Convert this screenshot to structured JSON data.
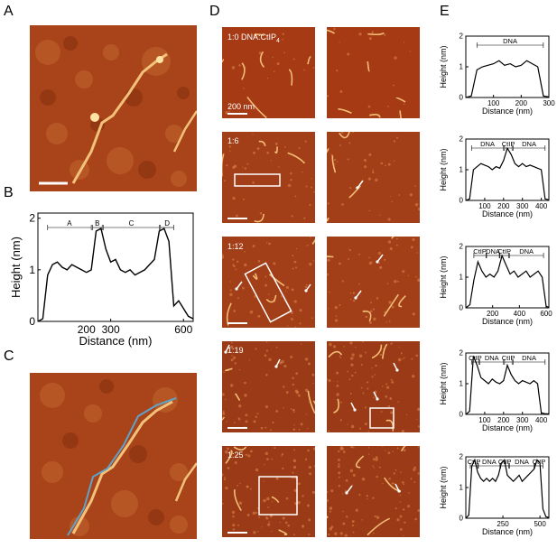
{
  "panels": {
    "A": {
      "letter": "A"
    },
    "B": {
      "letter": "B",
      "xlabel": "Distance (nm)",
      "ylabel": "Height (nm)",
      "xticks": [
        "0",
        "300",
        "600"
      ],
      "xticks_minor": [
        "200"
      ],
      "yticks": [
        "0",
        "1",
        "2"
      ],
      "segments": [
        "A",
        "B",
        "C",
        "D"
      ]
    },
    "C": {
      "letter": "C"
    },
    "D": {
      "letter": "D",
      "rows": [
        {
          "ratio": "1:0 DNA:CtIP",
          "sub": "4",
          "scale": "200 nm"
        },
        {
          "ratio": "1:6"
        },
        {
          "ratio": "1:12"
        },
        {
          "ratio": "1:19"
        },
        {
          "ratio": "1:25"
        }
      ]
    },
    "E": {
      "letter": "E",
      "xlabel": "Distance (nm)",
      "ylabel": "Height (nm)"
    }
  },
  "chart_data": [
    {
      "type": "line",
      "panel": "B",
      "xlabel": "Distance (nm)",
      "ylabel": "Height (nm)",
      "xlim": [
        0,
        640
      ],
      "ylim": [
        0,
        2.1
      ],
      "annotations": [
        "A",
        "B",
        "C",
        "D"
      ],
      "x": [
        0,
        20,
        40,
        60,
        80,
        100,
        120,
        140,
        160,
        180,
        200,
        220,
        240,
        260,
        280,
        300,
        320,
        340,
        360,
        380,
        400,
        420,
        440,
        460,
        480,
        500,
        520,
        540,
        560,
        580,
        600,
        620,
        640
      ],
      "y": [
        0,
        0.05,
        0.9,
        1.1,
        1.15,
        1.05,
        1.0,
        1.1,
        1.05,
        1.0,
        0.95,
        1.0,
        1.75,
        1.8,
        1.4,
        1.15,
        1.2,
        1.0,
        0.95,
        1.0,
        0.9,
        0.95,
        1.0,
        1.1,
        1.2,
        1.75,
        1.8,
        1.55,
        0.3,
        0.4,
        0.25,
        0.1,
        0.05
      ]
    },
    {
      "type": "line",
      "panel": "E1",
      "xlabel": "Distance (nm)",
      "ylabel": "Height (nm)",
      "xlim": [
        0,
        300
      ],
      "ylim": [
        0,
        2
      ],
      "xticks": [
        "100",
        "200",
        "300"
      ],
      "yticks": [
        "0",
        "1",
        "2"
      ],
      "annotations": [
        "DNA"
      ],
      "x": [
        0,
        20,
        40,
        60,
        80,
        100,
        120,
        140,
        160,
        180,
        200,
        220,
        240,
        260,
        280,
        300
      ],
      "y": [
        0,
        0.05,
        0.9,
        1.0,
        1.05,
        1.1,
        1.2,
        1.05,
        1.1,
        1.0,
        1.05,
        1.2,
        1.1,
        1.0,
        0.05,
        0.02
      ]
    },
    {
      "type": "line",
      "panel": "E2",
      "xlabel": "Distance (nm)",
      "ylabel": "Height (nm)",
      "xlim": [
        0,
        440
      ],
      "ylim": [
        0,
        2
      ],
      "xticks": [
        "100",
        "200",
        "300",
        "400"
      ],
      "yticks": [
        "0",
        "1",
        "2"
      ],
      "annotations": [
        "DNA",
        "CtIP",
        "DNA"
      ],
      "x": [
        0,
        20,
        40,
        60,
        80,
        100,
        120,
        140,
        160,
        180,
        200,
        220,
        240,
        260,
        280,
        300,
        320,
        340,
        360,
        380,
        400,
        420,
        440
      ],
      "y": [
        0,
        0.05,
        1.0,
        1.1,
        1.2,
        1.15,
        1.1,
        1.0,
        1.1,
        1.05,
        1.3,
        1.7,
        1.5,
        1.2,
        1.1,
        1.2,
        1.1,
        1.15,
        1.1,
        1.05,
        1.0,
        0.05,
        0.02
      ]
    },
    {
      "type": "line",
      "panel": "E3",
      "xlabel": "Distance (nm)",
      "ylabel": "Height (nm)",
      "xlim": [
        0,
        620
      ],
      "ylim": [
        0,
        2
      ],
      "xticks": [
        "200",
        "400",
        "600"
      ],
      "yticks": [
        "0",
        "1",
        "2"
      ],
      "annotations": [
        "CtIP",
        "DNA",
        "CtIP",
        "DNA"
      ],
      "x": [
        0,
        30,
        60,
        90,
        120,
        150,
        180,
        210,
        240,
        270,
        300,
        330,
        360,
        390,
        420,
        450,
        480,
        510,
        540,
        570,
        600,
        620
      ],
      "y": [
        0,
        0.1,
        0.9,
        1.5,
        1.2,
        1.0,
        1.1,
        1.0,
        1.2,
        1.7,
        1.4,
        1.1,
        1.2,
        1.0,
        1.1,
        1.2,
        1.0,
        1.1,
        1.2,
        1.0,
        0.05,
        0.02
      ]
    },
    {
      "type": "line",
      "panel": "E4",
      "xlabel": "Distance (nm)",
      "ylabel": "Height (nm)",
      "xlim": [
        0,
        440
      ],
      "ylim": [
        0,
        2
      ],
      "xticks": [
        "100",
        "200",
        "300",
        "400"
      ],
      "yticks": [
        "0",
        "1",
        "2"
      ],
      "annotations": [
        "CtIP",
        "DNA",
        "CtIP",
        "DNA"
      ],
      "x": [
        0,
        20,
        40,
        60,
        80,
        100,
        120,
        140,
        160,
        180,
        200,
        220,
        240,
        260,
        280,
        300,
        320,
        340,
        360,
        380,
        400,
        420,
        440
      ],
      "y": [
        0,
        0.1,
        1.9,
        1.6,
        1.2,
        1.1,
        1.0,
        1.15,
        1.05,
        1.0,
        1.1,
        1.6,
        1.3,
        1.1,
        1.0,
        1.1,
        1.05,
        1.0,
        1.1,
        1.0,
        0.05,
        0.02,
        0.02
      ]
    },
    {
      "type": "line",
      "panel": "E5",
      "xlabel": "Distance (nm)",
      "ylabel": "Height (nm)",
      "xlim": [
        0,
        560
      ],
      "ylim": [
        0,
        2
      ],
      "xticks": [
        "250",
        "500"
      ],
      "yticks": [
        "0",
        "1",
        "2"
      ],
      "annotations": [
        "CtIP",
        "DNA",
        "CtIP",
        "DNA",
        "CtIP"
      ],
      "x": [
        0,
        20,
        40,
        60,
        80,
        100,
        120,
        140,
        160,
        180,
        200,
        220,
        240,
        260,
        280,
        300,
        320,
        340,
        360,
        380,
        400,
        420,
        440,
        460,
        480,
        500,
        520,
        540,
        560
      ],
      "y": [
        0,
        0.1,
        1.7,
        1.9,
        1.5,
        1.3,
        1.2,
        1.3,
        1.2,
        1.3,
        1.2,
        1.4,
        1.8,
        1.9,
        1.4,
        1.3,
        1.2,
        1.3,
        1.4,
        1.2,
        1.3,
        1.4,
        1.5,
        1.6,
        1.9,
        1.8,
        0.3,
        0.05,
        0.02
      ]
    }
  ]
}
